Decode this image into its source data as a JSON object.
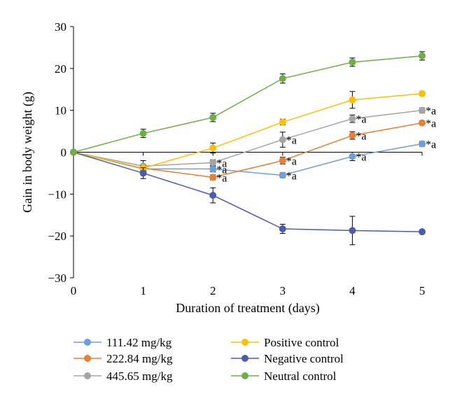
{
  "chart_data": {
    "type": "line",
    "xlabel": "Duration of treatment (days)",
    "ylabel": "Gain in body weight (g)",
    "x": [
      0,
      1,
      2,
      3,
      4,
      5
    ],
    "xlim": [
      0,
      5
    ],
    "ylim": [
      -30,
      30
    ],
    "xticks": [
      "0",
      "1",
      "2",
      "3",
      "4",
      "5"
    ],
    "yticks": [
      "30",
      "20",
      "10",
      "0",
      "−10",
      "−20",
      "−30"
    ],
    "yticks_values": [
      30,
      20,
      10,
      0,
      -10,
      -20,
      -30
    ],
    "grid": false,
    "legend_position": "bottom",
    "series": [
      {
        "name": "111.42 mg/kg",
        "color": "#6f9fd8",
        "values": [
          0,
          -4,
          -4,
          -5.5,
          -1,
          2
        ],
        "errors": [
          0,
          0.5,
          0.7,
          0.6,
          1.0,
          0.6
        ],
        "annotations": [
          "",
          "",
          "*a",
          "*a",
          "*a",
          "*a"
        ]
      },
      {
        "name": "222.84 mg/kg",
        "color": "#ed7d31",
        "values": [
          0,
          -3.8,
          -6,
          -2,
          4,
          7
        ],
        "errors": [
          0,
          0.6,
          0.6,
          0.8,
          0.9,
          0.5
        ],
        "annotations": [
          "",
          "",
          "*a",
          "*a",
          "*a",
          "*a"
        ]
      },
      {
        "name": "445.65 mg/kg",
        "color": "#a5a5a5",
        "values": [
          0,
          -3.3,
          -2.5,
          3,
          8,
          10
        ],
        "errors": [
          0,
          1.3,
          0.7,
          1.8,
          0.9,
          0.6
        ],
        "annotations": [
          "",
          "",
          "*a",
          "*a",
          "*a",
          "*a"
        ]
      },
      {
        "name": "Positive control",
        "color": "#ffc000",
        "values": [
          0,
          -3.8,
          1,
          7.2,
          12.5,
          14
        ],
        "errors": [
          0,
          0.6,
          1.2,
          0.7,
          2.0,
          0.5
        ],
        "annotations": [
          "",
          "",
          "",
          "",
          "",
          ""
        ]
      },
      {
        "name": "Negative control",
        "color": "#4a5bb0",
        "values": [
          0,
          -5,
          -10.3,
          -18.3,
          -18.7,
          -19
        ],
        "errors": [
          0,
          1.3,
          1.8,
          1.1,
          3.4,
          0.4
        ],
        "annotations": [
          "",
          "",
          "",
          "",
          "",
          ""
        ]
      },
      {
        "name": "Neutral control",
        "color": "#70ad47",
        "values": [
          0,
          4.5,
          8.3,
          17.6,
          21.5,
          23
        ],
        "errors": [
          0,
          1.0,
          1.0,
          1.1,
          1.0,
          1.0
        ],
        "annotations": [
          "",
          "",
          "",
          "",
          "",
          ""
        ]
      }
    ]
  }
}
